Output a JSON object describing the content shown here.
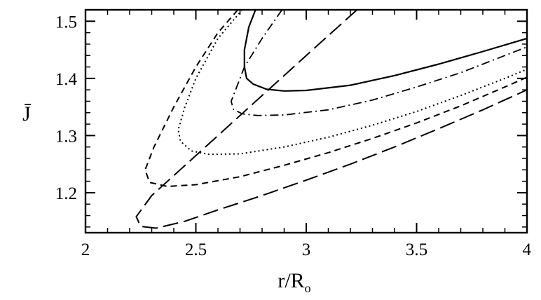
{
  "chart_data": {
    "type": "line",
    "title": "",
    "xlabel": {
      "main": "r/R",
      "sub": "o"
    },
    "ylabel": "J̄",
    "xlim": [
      2,
      4
    ],
    "ylim": [
      1.13,
      1.52
    ],
    "x_ticks": [
      {
        "value": 2,
        "label": "2"
      },
      {
        "value": 2.5,
        "label": "2.5"
      },
      {
        "value": 3,
        "label": "3"
      },
      {
        "value": 3.5,
        "label": "3.5"
      },
      {
        "value": 4,
        "label": "4"
      }
    ],
    "y_ticks": [
      {
        "value": 1.2,
        "label": "1.2"
      },
      {
        "value": 1.3,
        "label": "1.3"
      },
      {
        "value": 1.4,
        "label": "1.4"
      },
      {
        "value": 1.5,
        "label": "1.5"
      }
    ],
    "x_minor_step": 0.1,
    "y_minor_step": 0.02,
    "grid": false,
    "series": [
      {
        "style": "solid",
        "points": [
          [
            2.77,
            1.52
          ],
          [
            2.74,
            1.49
          ],
          [
            2.72,
            1.45
          ],
          [
            2.72,
            1.42
          ],
          [
            2.73,
            1.4
          ],
          [
            2.76,
            1.39
          ],
          [
            2.82,
            1.381
          ],
          [
            2.9,
            1.378
          ],
          [
            3.0,
            1.379
          ],
          [
            3.2,
            1.388
          ],
          [
            3.4,
            1.405
          ],
          [
            3.6,
            1.425
          ],
          [
            3.8,
            1.447
          ],
          [
            4.0,
            1.47
          ]
        ]
      },
      {
        "style": "dash-dot",
        "points": [
          [
            2.89,
            1.52
          ],
          [
            2.8,
            1.47
          ],
          [
            2.72,
            1.42
          ],
          [
            2.68,
            1.38
          ],
          [
            2.66,
            1.36
          ],
          [
            2.67,
            1.346
          ],
          [
            2.71,
            1.338
          ],
          [
            2.78,
            1.335
          ],
          [
            2.9,
            1.336
          ],
          [
            3.1,
            1.345
          ],
          [
            3.3,
            1.362
          ],
          [
            3.5,
            1.385
          ],
          [
            3.7,
            1.41
          ],
          [
            3.9,
            1.44
          ],
          [
            4.0,
            1.455
          ]
        ]
      },
      {
        "style": "dotted",
        "points": [
          [
            2.71,
            1.52
          ],
          [
            2.6,
            1.47
          ],
          [
            2.5,
            1.4
          ],
          [
            2.45,
            1.35
          ],
          [
            2.42,
            1.31
          ],
          [
            2.43,
            1.29
          ],
          [
            2.48,
            1.273
          ],
          [
            2.56,
            1.267
          ],
          [
            2.7,
            1.268
          ],
          [
            2.9,
            1.28
          ],
          [
            3.1,
            1.297
          ],
          [
            3.3,
            1.318
          ],
          [
            3.5,
            1.342
          ],
          [
            3.7,
            1.37
          ],
          [
            3.9,
            1.4
          ],
          [
            4.0,
            1.416
          ]
        ]
      },
      {
        "style": "short-dash",
        "points": [
          [
            2.69,
            1.52
          ],
          [
            2.6,
            1.48
          ],
          [
            2.5,
            1.42
          ],
          [
            2.4,
            1.35
          ],
          [
            2.31,
            1.28
          ],
          [
            2.27,
            1.24
          ],
          [
            2.29,
            1.218
          ],
          [
            2.37,
            1.211
          ],
          [
            2.5,
            1.214
          ],
          [
            2.7,
            1.228
          ],
          [
            2.9,
            1.248
          ],
          [
            3.1,
            1.27
          ],
          [
            3.3,
            1.295
          ],
          [
            3.5,
            1.322
          ],
          [
            3.7,
            1.352
          ],
          [
            3.9,
            1.385
          ],
          [
            4.0,
            1.402
          ]
        ]
      },
      {
        "style": "long-dash",
        "points": [
          [
            3.23,
            1.52
          ],
          [
            3.0,
            1.44
          ],
          [
            2.8,
            1.37
          ],
          [
            2.6,
            1.3
          ],
          [
            2.4,
            1.23
          ],
          [
            2.3,
            1.195
          ],
          [
            2.23,
            1.158
          ],
          [
            2.25,
            1.141
          ],
          [
            2.32,
            1.138
          ],
          [
            2.45,
            1.15
          ],
          [
            2.6,
            1.17
          ],
          [
            2.8,
            1.195
          ],
          [
            3.0,
            1.222
          ],
          [
            3.2,
            1.25
          ],
          [
            3.4,
            1.28
          ],
          [
            3.6,
            1.312
          ],
          [
            3.8,
            1.345
          ],
          [
            4.0,
            1.38
          ]
        ]
      }
    ]
  }
}
